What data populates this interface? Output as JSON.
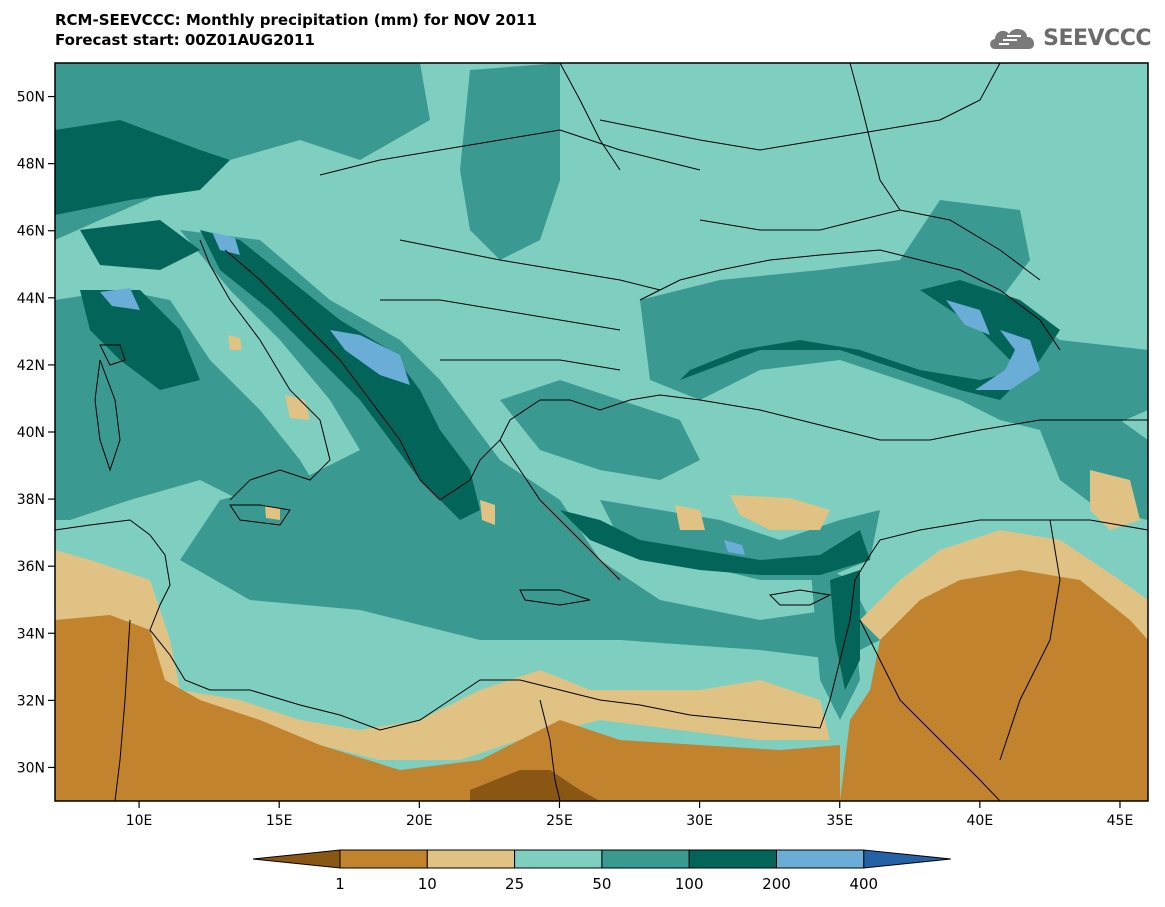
{
  "header": {
    "title": "RCM-SEEVCCC: Monthly precipitation (mm) for NOV 2011",
    "subtitle": "Forecast start: 00Z01AUG2011"
  },
  "logo": {
    "text": "SEEVCCC",
    "icon": "cloud-logo-icon"
  },
  "axes": {
    "lon_labels": [
      "10E",
      "15E",
      "20E",
      "25E",
      "30E",
      "35E",
      "40E",
      "45E"
    ],
    "lat_labels": [
      "50N",
      "48N",
      "46N",
      "44N",
      "42N",
      "40N",
      "38N",
      "36N",
      "34N",
      "32N",
      "30N"
    ],
    "lon_values": [
      10,
      15,
      20,
      25,
      30,
      35,
      40,
      45
    ],
    "lat_values": [
      50,
      48,
      46,
      44,
      42,
      40,
      38,
      36,
      34,
      32,
      30
    ],
    "lon_range": [
      7,
      46
    ],
    "lat_range": [
      29,
      51
    ]
  },
  "colorbar": {
    "labels": [
      "1",
      "10",
      "25",
      "50",
      "100",
      "200",
      "400"
    ],
    "colors": [
      "#8a5614",
      "#c2832e",
      "#e0c384",
      "#7fcfc0",
      "#3a9a91",
      "#036459",
      "#6aadd6",
      "#2561a6"
    ]
  }
}
